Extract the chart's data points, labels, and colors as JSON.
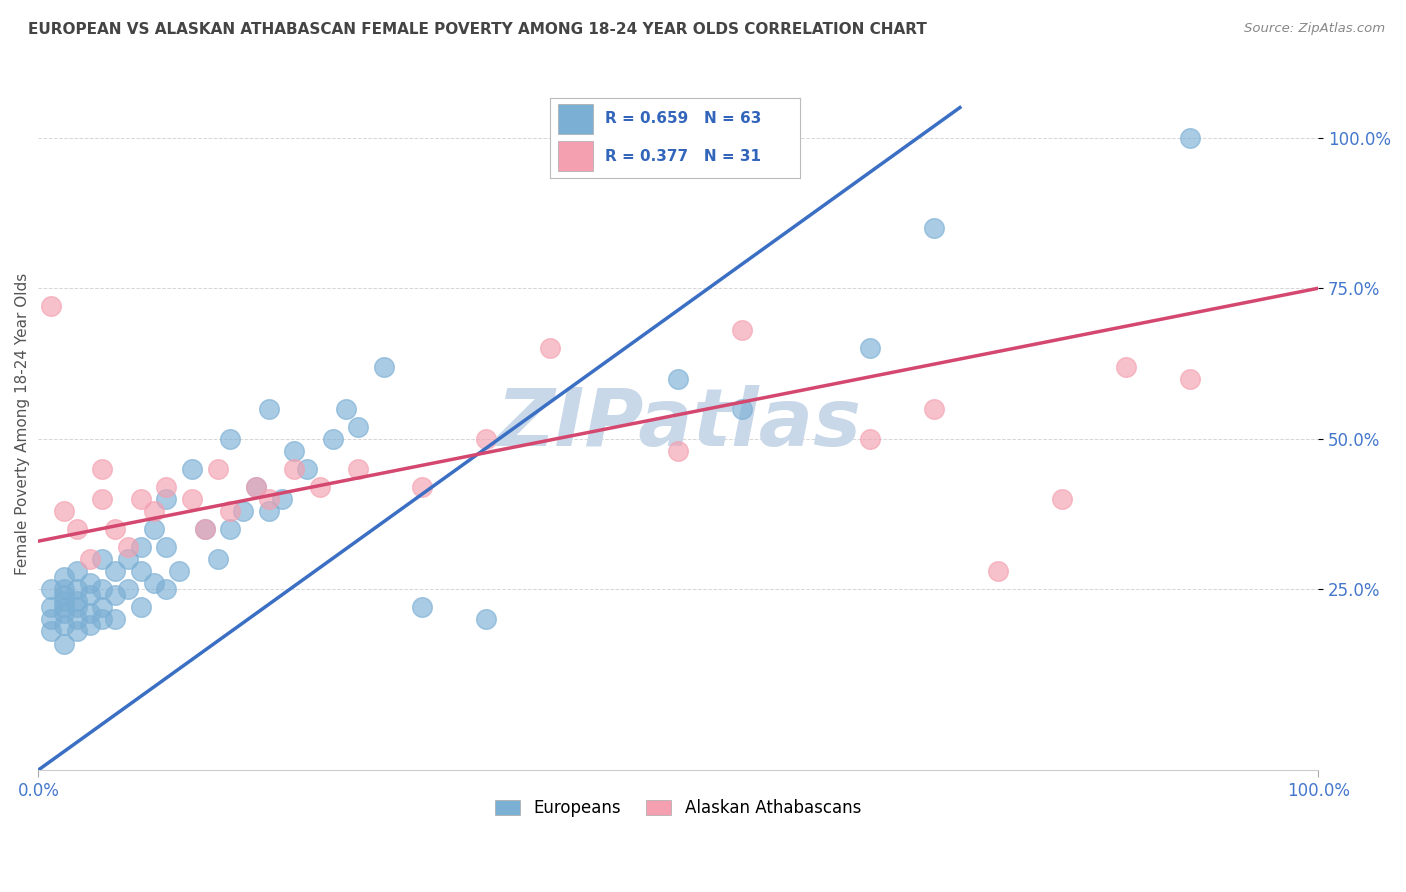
{
  "title": "EUROPEAN VS ALASKAN ATHABASCAN FEMALE POVERTY AMONG 18-24 YEAR OLDS CORRELATION CHART",
  "source": "Source: ZipAtlas.com",
  "ylabel": "Female Poverty Among 18-24 Year Olds",
  "xlim": [
    0.0,
    1.0
  ],
  "ylim": [
    -0.05,
    1.1
  ],
  "x_ticks": [
    0.0,
    1.0
  ],
  "x_tick_labels": [
    "0.0%",
    "100.0%"
  ],
  "y_ticks": [
    0.25,
    0.5,
    0.75,
    1.0
  ],
  "y_tick_labels": [
    "25.0%",
    "50.0%",
    "75.0%",
    "100.0%"
  ],
  "european_color": "#7BAFD4",
  "athabascan_color": "#F4A0B0",
  "european_line_color": "#3A6FC4",
  "athabascan_line_color": "#D44870",
  "european_R": 0.659,
  "european_N": 63,
  "athabascan_R": 0.377,
  "athabascan_N": 31,
  "watermark": "ZIPatlas",
  "watermark_color": "#C8D8E8",
  "background_color": "#FFFFFF",
  "grid_color": "#CCCCCC",
  "title_color": "#444444",
  "source_color": "#888888",
  "legend_R_color": "#3366BB",
  "tick_label_color": "#4477CC",
  "european_points_x": [
    0.01,
    0.01,
    0.01,
    0.01,
    0.02,
    0.02,
    0.02,
    0.02,
    0.02,
    0.02,
    0.02,
    0.02,
    0.03,
    0.03,
    0.03,
    0.03,
    0.03,
    0.03,
    0.04,
    0.04,
    0.04,
    0.04,
    0.05,
    0.05,
    0.05,
    0.05,
    0.06,
    0.06,
    0.06,
    0.07,
    0.07,
    0.08,
    0.08,
    0.08,
    0.09,
    0.09,
    0.1,
    0.1,
    0.1,
    0.11,
    0.12,
    0.13,
    0.14,
    0.15,
    0.15,
    0.16,
    0.17,
    0.18,
    0.18,
    0.19,
    0.2,
    0.21,
    0.23,
    0.24,
    0.25,
    0.27,
    0.3,
    0.35,
    0.5,
    0.55,
    0.65,
    0.7,
    0.9
  ],
  "european_points_y": [
    0.18,
    0.2,
    0.22,
    0.25,
    0.16,
    0.19,
    0.21,
    0.22,
    0.23,
    0.24,
    0.25,
    0.27,
    0.18,
    0.2,
    0.22,
    0.23,
    0.25,
    0.28,
    0.19,
    0.21,
    0.24,
    0.26,
    0.2,
    0.22,
    0.25,
    0.3,
    0.2,
    0.24,
    0.28,
    0.25,
    0.3,
    0.22,
    0.28,
    0.32,
    0.26,
    0.35,
    0.25,
    0.32,
    0.4,
    0.28,
    0.45,
    0.35,
    0.3,
    0.35,
    0.5,
    0.38,
    0.42,
    0.38,
    0.55,
    0.4,
    0.48,
    0.45,
    0.5,
    0.55,
    0.52,
    0.62,
    0.22,
    0.2,
    0.6,
    0.55,
    0.65,
    0.85,
    1.0
  ],
  "athabascan_points_x": [
    0.01,
    0.02,
    0.03,
    0.04,
    0.05,
    0.05,
    0.06,
    0.07,
    0.08,
    0.09,
    0.1,
    0.12,
    0.13,
    0.14,
    0.15,
    0.17,
    0.18,
    0.2,
    0.22,
    0.25,
    0.3,
    0.35,
    0.4,
    0.5,
    0.55,
    0.65,
    0.7,
    0.75,
    0.8,
    0.85,
    0.9
  ],
  "athabascan_points_y": [
    0.72,
    0.38,
    0.35,
    0.3,
    0.4,
    0.45,
    0.35,
    0.32,
    0.4,
    0.38,
    0.42,
    0.4,
    0.35,
    0.45,
    0.38,
    0.42,
    0.4,
    0.45,
    0.42,
    0.45,
    0.42,
    0.5,
    0.65,
    0.48,
    0.68,
    0.5,
    0.55,
    0.28,
    0.4,
    0.62,
    0.6
  ],
  "eu_line_x0": 0.0,
  "eu_line_y0": -0.05,
  "eu_line_x1": 0.72,
  "eu_line_y1": 1.05,
  "ath_line_x0": 0.0,
  "ath_line_y0": 0.33,
  "ath_line_x1": 1.0,
  "ath_line_y1": 0.75
}
